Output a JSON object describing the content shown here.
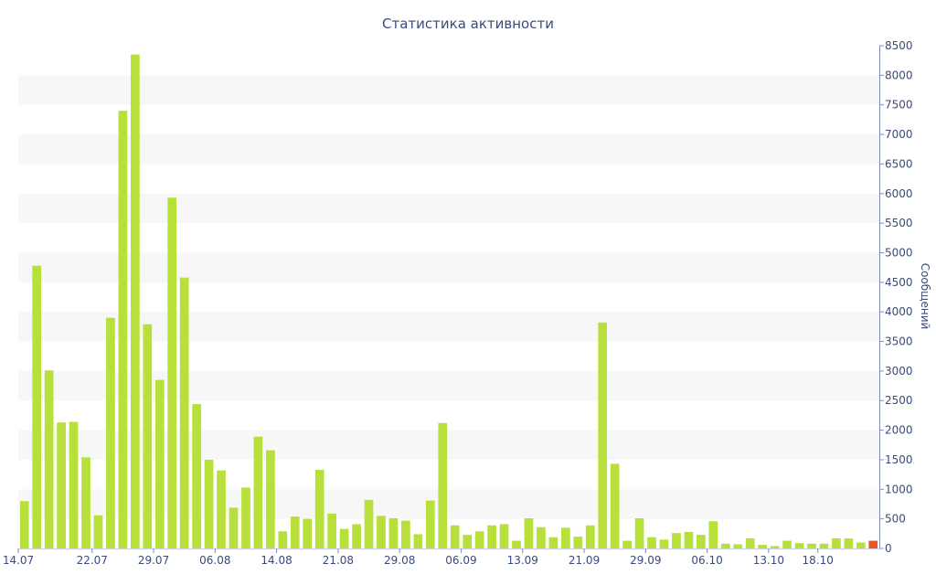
{
  "chart_data": {
    "type": "bar",
    "title": "Статистика активности",
    "xlabel": "",
    "ylabel": "Сообщений",
    "ylim": [
      0,
      8500
    ],
    "yticks": [
      0,
      500,
      1000,
      1500,
      2000,
      2500,
      3000,
      3500,
      4000,
      4500,
      5000,
      5500,
      6000,
      6500,
      7000,
      7500,
      8000,
      8500
    ],
    "grid": "alternating horizontal bands",
    "y_axis_side": "right",
    "bar_color": "#b7e03a",
    "highlight_color": "#e8552b",
    "band_color": "#f7f7f7",
    "xtick_labels": [
      {
        "index": 0,
        "label": "14.07"
      },
      {
        "index": 6,
        "label": "22.07"
      },
      {
        "index": 11,
        "label": "29.07"
      },
      {
        "index": 16,
        "label": "06.08"
      },
      {
        "index": 21,
        "label": "14.08"
      },
      {
        "index": 26,
        "label": "21.08"
      },
      {
        "index": 31,
        "label": "29.08"
      },
      {
        "index": 36,
        "label": "06.09"
      },
      {
        "index": 41,
        "label": "13.09"
      },
      {
        "index": 46,
        "label": "21.09"
      },
      {
        "index": 51,
        "label": "29.09"
      },
      {
        "index": 56,
        "label": "06.10"
      },
      {
        "index": 61,
        "label": "13.10"
      },
      {
        "index": 65,
        "label": "18.10"
      }
    ],
    "values": [
      800,
      4780,
      3010,
      2130,
      2140,
      1540,
      560,
      3900,
      7400,
      8350,
      3790,
      2850,
      5930,
      4580,
      2440,
      1500,
      1320,
      690,
      1030,
      1890,
      1660,
      290,
      540,
      500,
      1330,
      590,
      330,
      410,
      820,
      550,
      510,
      470,
      240,
      810,
      2120,
      390,
      230,
      290,
      390,
      410,
      130,
      510,
      360,
      190,
      350,
      200,
      390,
      3820,
      1430,
      130,
      510,
      190,
      150,
      260,
      280,
      230,
      460,
      80,
      70,
      170,
      60,
      40,
      130,
      90,
      80,
      80,
      170,
      170,
      100,
      130
    ],
    "highlight_index": 69
  }
}
